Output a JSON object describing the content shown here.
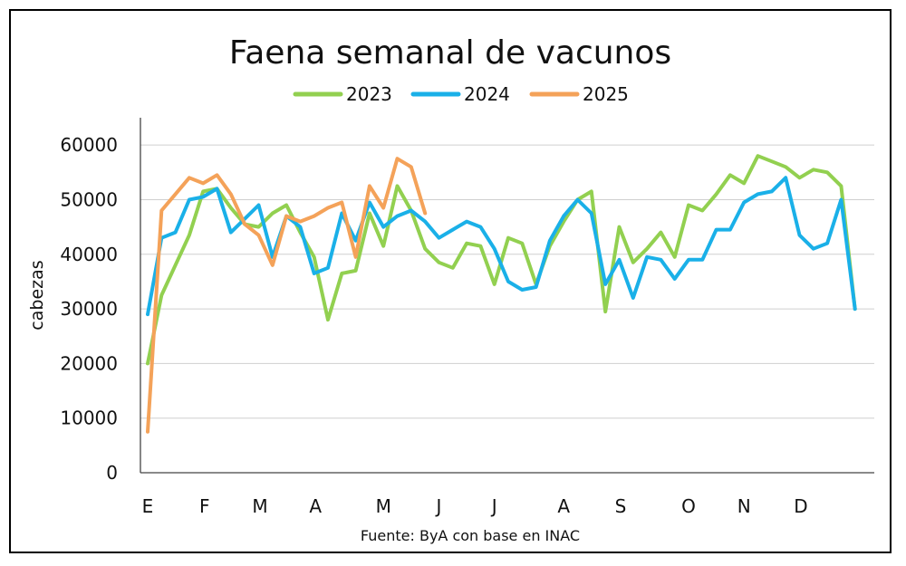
{
  "chart_data": {
    "type": "line",
    "title": "Faena semanal de vacunos",
    "ylabel": "cabezas",
    "xlabel": "",
    "source": "Fuente: ByA con base en INAC",
    "ylim": [
      0,
      65000
    ],
    "y_ticks": [
      0,
      10000,
      20000,
      30000,
      40000,
      50000,
      60000
    ],
    "x_tick_labels": [
      {
        "label": "E",
        "week": 1
      },
      {
        "label": "F",
        "week": 5.1
      },
      {
        "label": "M",
        "week": 9.1
      },
      {
        "label": "A",
        "week": 13.1
      },
      {
        "label": "M",
        "week": 18
      },
      {
        "label": "J",
        "week": 22
      },
      {
        "label": "J",
        "week": 26
      },
      {
        "label": "A",
        "week": 31
      },
      {
        "label": "S",
        "week": 35.1
      },
      {
        "label": "O",
        "week": 40
      },
      {
        "label": "N",
        "week": 44
      },
      {
        "label": "D",
        "week": 48.1
      }
    ],
    "grid": true,
    "legend": "top",
    "weeks_total": 53,
    "series": [
      {
        "name": "2023",
        "color": "#92d050",
        "values": [
          20000,
          32500,
          38000,
          43500,
          51500,
          52000,
          48500,
          45500,
          45000,
          47500,
          49000,
          44000,
          39500,
          28000,
          36500,
          37000,
          47500,
          41500,
          52500,
          48000,
          41000,
          38500,
          37500,
          42000,
          41500,
          34500,
          43000,
          42000,
          34500,
          41500,
          46000,
          50000,
          51500,
          29500,
          45000,
          38500,
          41000,
          44000,
          39500,
          49000,
          48000,
          51000,
          54500,
          53000,
          58000,
          57000,
          56000,
          54000,
          55500,
          55000,
          52500,
          30000
        ]
      },
      {
        "name": "2024",
        "color": "#1ab0e8",
        "values": [
          29000,
          43000,
          44000,
          50000,
          50500,
          52000,
          44000,
          46500,
          49000,
          39500,
          47000,
          45000,
          36500,
          37500,
          47500,
          42500,
          49500,
          45000,
          47000,
          48000,
          46000,
          43000,
          44500,
          46000,
          45000,
          41000,
          35000,
          33500,
          34000,
          42500,
          47000,
          50000,
          47500,
          34500,
          39000,
          32000,
          39500,
          39000,
          35500,
          39000,
          39000,
          44500,
          44500,
          49500,
          51000,
          51500,
          54000,
          43500,
          41000,
          42000,
          50000,
          30000
        ]
      },
      {
        "name": "2025",
        "color": "#f4a259",
        "values": [
          7500,
          48000,
          51000,
          54000,
          53000,
          54500,
          51000,
          45500,
          43500,
          38000,
          47000,
          46000,
          47000,
          48500,
          49500,
          39500,
          52500,
          48500,
          57500,
          56000,
          47500
        ]
      }
    ]
  }
}
